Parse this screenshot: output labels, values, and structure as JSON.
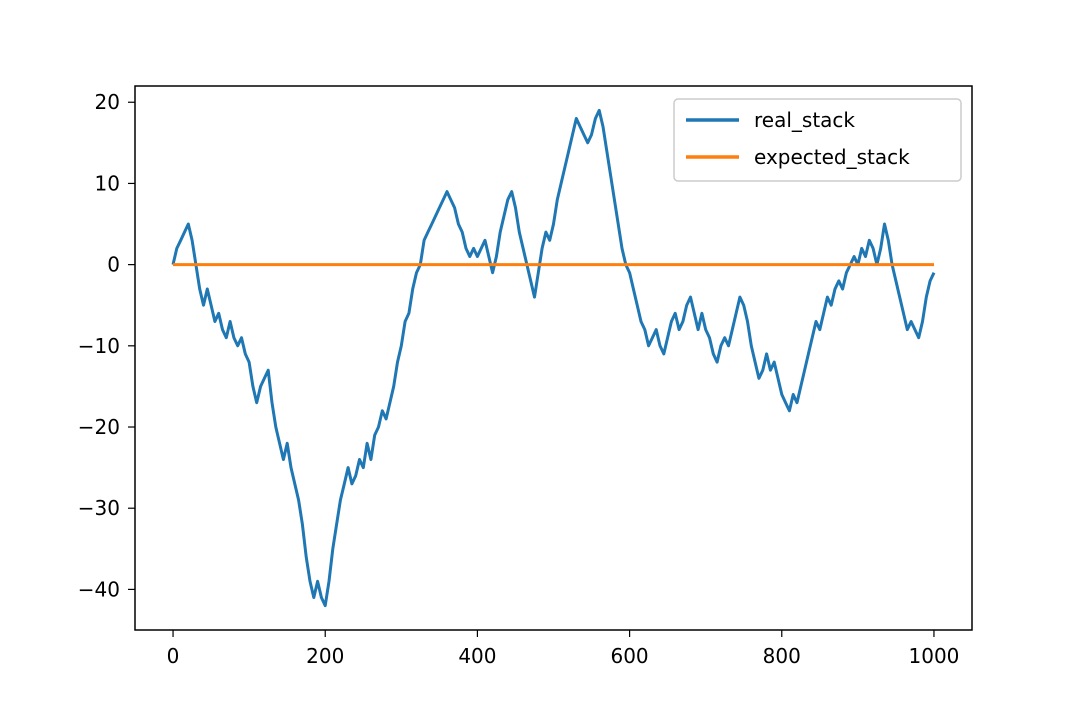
{
  "chart_data": {
    "type": "line",
    "title": "",
    "xlabel": "",
    "ylabel": "",
    "xlim": [
      -50,
      1050
    ],
    "ylim": [
      -45,
      22
    ],
    "xticks": [
      0,
      200,
      400,
      600,
      800,
      1000
    ],
    "xtick_labels": [
      "0",
      "200",
      "400",
      "600",
      "800",
      "1000"
    ],
    "yticks": [
      20,
      10,
      0,
      -10,
      -20,
      -30,
      -40
    ],
    "ytick_labels": [
      "20",
      "10",
      "0",
      "−10",
      "−20",
      "−30",
      "−40"
    ],
    "grid": false,
    "legend_position": "top-right",
    "series": [
      {
        "name": "real_stack",
        "color": "#1f77b4",
        "points": [
          [
            0,
            0
          ],
          [
            5,
            2
          ],
          [
            10,
            3
          ],
          [
            15,
            4
          ],
          [
            20,
            5
          ],
          [
            25,
            3
          ],
          [
            30,
            0
          ],
          [
            35,
            -3
          ],
          [
            40,
            -5
          ],
          [
            45,
            -3
          ],
          [
            50,
            -5
          ],
          [
            55,
            -7
          ],
          [
            60,
            -6
          ],
          [
            65,
            -8
          ],
          [
            70,
            -9
          ],
          [
            75,
            -7
          ],
          [
            80,
            -9
          ],
          [
            85,
            -10
          ],
          [
            90,
            -9
          ],
          [
            95,
            -11
          ],
          [
            100,
            -12
          ],
          [
            105,
            -15
          ],
          [
            110,
            -17
          ],
          [
            115,
            -15
          ],
          [
            120,
            -14
          ],
          [
            125,
            -13
          ],
          [
            130,
            -17
          ],
          [
            135,
            -20
          ],
          [
            140,
            -22
          ],
          [
            145,
            -24
          ],
          [
            150,
            -22
          ],
          [
            155,
            -25
          ],
          [
            160,
            -27
          ],
          [
            165,
            -29
          ],
          [
            170,
            -32
          ],
          [
            175,
            -36
          ],
          [
            180,
            -39
          ],
          [
            185,
            -41
          ],
          [
            190,
            -39
          ],
          [
            195,
            -41
          ],
          [
            200,
            -42
          ],
          [
            205,
            -39
          ],
          [
            210,
            -35
          ],
          [
            215,
            -32
          ],
          [
            220,
            -29
          ],
          [
            225,
            -27
          ],
          [
            230,
            -25
          ],
          [
            235,
            -27
          ],
          [
            240,
            -26
          ],
          [
            245,
            -24
          ],
          [
            250,
            -25
          ],
          [
            255,
            -22
          ],
          [
            260,
            -24
          ],
          [
            265,
            -21
          ],
          [
            270,
            -20
          ],
          [
            275,
            -18
          ],
          [
            280,
            -19
          ],
          [
            285,
            -17
          ],
          [
            290,
            -15
          ],
          [
            295,
            -12
          ],
          [
            300,
            -10
          ],
          [
            305,
            -7
          ],
          [
            310,
            -6
          ],
          [
            315,
            -3
          ],
          [
            320,
            -1
          ],
          [
            325,
            0
          ],
          [
            330,
            3
          ],
          [
            335,
            4
          ],
          [
            340,
            5
          ],
          [
            345,
            6
          ],
          [
            350,
            7
          ],
          [
            355,
            8
          ],
          [
            360,
            9
          ],
          [
            365,
            8
          ],
          [
            370,
            7
          ],
          [
            375,
            5
          ],
          [
            380,
            4
          ],
          [
            385,
            2
          ],
          [
            390,
            1
          ],
          [
            395,
            2
          ],
          [
            400,
            1
          ],
          [
            405,
            2
          ],
          [
            410,
            3
          ],
          [
            415,
            1
          ],
          [
            420,
            -1
          ],
          [
            425,
            1
          ],
          [
            430,
            4
          ],
          [
            435,
            6
          ],
          [
            440,
            8
          ],
          [
            445,
            9
          ],
          [
            450,
            7
          ],
          [
            455,
            4
          ],
          [
            460,
            2
          ],
          [
            465,
            0
          ],
          [
            470,
            -2
          ],
          [
            475,
            -4
          ],
          [
            480,
            -1
          ],
          [
            485,
            2
          ],
          [
            490,
            4
          ],
          [
            495,
            3
          ],
          [
            500,
            5
          ],
          [
            505,
            8
          ],
          [
            510,
            10
          ],
          [
            515,
            12
          ],
          [
            520,
            14
          ],
          [
            525,
            16
          ],
          [
            530,
            18
          ],
          [
            535,
            17
          ],
          [
            540,
            16
          ],
          [
            545,
            15
          ],
          [
            550,
            16
          ],
          [
            555,
            18
          ],
          [
            560,
            19
          ],
          [
            565,
            17
          ],
          [
            570,
            14
          ],
          [
            575,
            11
          ],
          [
            580,
            8
          ],
          [
            585,
            5
          ],
          [
            590,
            2
          ],
          [
            595,
            0
          ],
          [
            600,
            -1
          ],
          [
            605,
            -3
          ],
          [
            610,
            -5
          ],
          [
            615,
            -7
          ],
          [
            620,
            -8
          ],
          [
            625,
            -10
          ],
          [
            630,
            -9
          ],
          [
            635,
            -8
          ],
          [
            640,
            -10
          ],
          [
            645,
            -11
          ],
          [
            650,
            -9
          ],
          [
            655,
            -7
          ],
          [
            660,
            -6
          ],
          [
            665,
            -8
          ],
          [
            670,
            -7
          ],
          [
            675,
            -5
          ],
          [
            680,
            -4
          ],
          [
            685,
            -6
          ],
          [
            690,
            -8
          ],
          [
            695,
            -6
          ],
          [
            700,
            -8
          ],
          [
            705,
            -9
          ],
          [
            710,
            -11
          ],
          [
            715,
            -12
          ],
          [
            720,
            -10
          ],
          [
            725,
            -9
          ],
          [
            730,
            -10
          ],
          [
            735,
            -8
          ],
          [
            740,
            -6
          ],
          [
            745,
            -4
          ],
          [
            750,
            -5
          ],
          [
            755,
            -7
          ],
          [
            760,
            -10
          ],
          [
            765,
            -12
          ],
          [
            770,
            -14
          ],
          [
            775,
            -13
          ],
          [
            780,
            -11
          ],
          [
            785,
            -13
          ],
          [
            790,
            -12
          ],
          [
            795,
            -14
          ],
          [
            800,
            -16
          ],
          [
            805,
            -17
          ],
          [
            810,
            -18
          ],
          [
            815,
            -16
          ],
          [
            820,
            -17
          ],
          [
            825,
            -15
          ],
          [
            830,
            -13
          ],
          [
            835,
            -11
          ],
          [
            840,
            -9
          ],
          [
            845,
            -7
          ],
          [
            850,
            -8
          ],
          [
            855,
            -6
          ],
          [
            860,
            -4
          ],
          [
            865,
            -5
          ],
          [
            870,
            -3
          ],
          [
            875,
            -2
          ],
          [
            880,
            -3
          ],
          [
            885,
            -1
          ],
          [
            890,
            0
          ],
          [
            895,
            1
          ],
          [
            900,
            0
          ],
          [
            905,
            2
          ],
          [
            910,
            1
          ],
          [
            915,
            3
          ],
          [
            920,
            2
          ],
          [
            925,
            0
          ],
          [
            930,
            2
          ],
          [
            935,
            5
          ],
          [
            940,
            3
          ],
          [
            945,
            0
          ],
          [
            950,
            -2
          ],
          [
            955,
            -4
          ],
          [
            960,
            -6
          ],
          [
            965,
            -8
          ],
          [
            970,
            -7
          ],
          [
            975,
            -8
          ],
          [
            980,
            -9
          ],
          [
            985,
            -7
          ],
          [
            990,
            -4
          ],
          [
            995,
            -2
          ],
          [
            1000,
            -1
          ]
        ]
      },
      {
        "name": "expected_stack",
        "color": "#ff7f0e",
        "points": [
          [
            0,
            0
          ],
          [
            1000,
            0
          ]
        ]
      }
    ]
  }
}
